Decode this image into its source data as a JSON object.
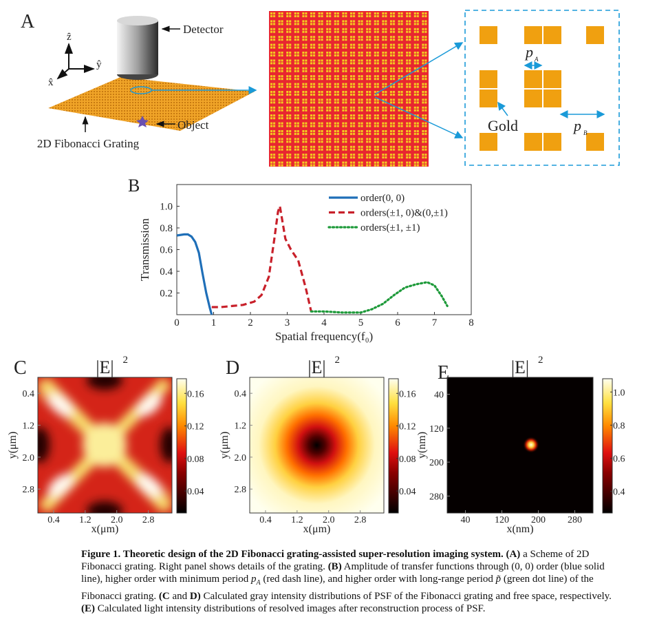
{
  "panel_a": {
    "label": "A",
    "detector": "Detector",
    "object": "Object",
    "grating": "2D Fibonacci Grating",
    "axis_z": "ẑ",
    "axis_y": "ŷ",
    "axis_x": "x̂",
    "gold": "Gold",
    "period_a": "p",
    "period_a_sub": "A",
    "period_b": "p",
    "period_b_sub": "B"
  },
  "chart_data": [
    {
      "type": "line",
      "label": "B",
      "xlabel": "Spatial frequency(f₀)",
      "ylabel": "Transmission",
      "xlim": [
        0,
        8
      ],
      "ylim": [
        0,
        1.2
      ],
      "xticks": [
        0,
        1,
        2,
        3,
        4,
        5,
        6,
        7,
        8
      ],
      "yticks": [
        0.2,
        0.4,
        0.6,
        0.8,
        {
          "value": 1,
          "label": "1.0"
        }
      ],
      "legend": "upper right",
      "series": [
        {
          "name": "order(0, 0)",
          "color": "#1f6fb8",
          "style": "solid",
          "x": [
            0,
            0.2,
            0.3,
            0.4,
            0.5,
            0.6,
            0.7,
            0.8,
            0.9,
            0.95
          ],
          "values": [
            0.73,
            0.74,
            0.74,
            0.72,
            0.67,
            0.57,
            0.38,
            0.2,
            0.06,
            0.0
          ]
        },
        {
          "name": "orders(±1, 0)&(0,±1)",
          "color": "#c8202a",
          "style": "dashed",
          "x": [
            0.95,
            1.2,
            1.5,
            1.8,
            2.1,
            2.3,
            2.5,
            2.65,
            2.75,
            2.8,
            2.85,
            2.95,
            3.1,
            3.3,
            3.5,
            3.65
          ],
          "values": [
            0.07,
            0.07,
            0.08,
            0.09,
            0.12,
            0.18,
            0.35,
            0.7,
            0.95,
            1.0,
            0.9,
            0.7,
            0.6,
            0.5,
            0.25,
            0.03
          ]
        },
        {
          "name": "orders(±1, ±1)",
          "color": "#1e9a3a",
          "style": "dotted",
          "x": [
            3.65,
            4.0,
            4.5,
            5.0,
            5.3,
            5.6,
            5.9,
            6.2,
            6.5,
            6.8,
            7.0,
            7.2,
            7.35
          ],
          "values": [
            0.03,
            0.03,
            0.02,
            0.02,
            0.05,
            0.1,
            0.18,
            0.25,
            0.28,
            0.3,
            0.27,
            0.17,
            0.08
          ]
        }
      ]
    },
    {
      "type": "heatmap",
      "label": "C",
      "title": "|E|",
      "title_sup": "2",
      "xlabel": "x(μm)",
      "ylabel": "y(μm)",
      "xlim": [
        0,
        3.4
      ],
      "ylim": [
        0,
        3.4
      ],
      "xticks": [
        0.4,
        1.2,
        {
          "value": 2,
          "label": "2.0"
        },
        2.8
      ],
      "yticks": [
        0.4,
        1.2,
        {
          "value": 2,
          "label": "2.0"
        },
        2.8
      ],
      "colorbar_lim": [
        0.013,
        0.178
      ],
      "colorbar_ticks": [
        0.04,
        0.08,
        0.12,
        0.16
      ]
    },
    {
      "type": "heatmap",
      "label": "D",
      "title": "|E|",
      "title_sup": "2",
      "xlabel": "x(μm)",
      "ylabel": "y(μm)",
      "xlim": [
        0,
        3.4
      ],
      "ylim": [
        0,
        3.4
      ],
      "xticks": [
        0.4,
        1.2,
        {
          "value": 2,
          "label": "2.0"
        },
        2.8
      ],
      "yticks": [
        0.4,
        1.2,
        {
          "value": 2,
          "label": "2.0"
        },
        2.8
      ],
      "colorbar_lim": [
        0.013,
        0.178
      ],
      "colorbar_ticks": [
        0.04,
        0.08,
        0.12,
        0.16
      ]
    },
    {
      "type": "heatmap",
      "label": "E",
      "title": "|E|",
      "title_sup": "2",
      "xlabel": "x(nm)",
      "ylabel": "y(nm)",
      "xlim": [
        0,
        320
      ],
      "ylim": [
        0,
        320
      ],
      "xticks": [
        40,
        120,
        200,
        280
      ],
      "yticks": [
        40,
        120,
        200,
        280
      ],
      "colorbar_lim": [
        0.27,
        1.08
      ],
      "colorbar_ticks": [
        0.4,
        0.6,
        0.8,
        {
          "value": 1,
          "label": "1.0"
        }
      ]
    }
  ],
  "caption": {
    "parts": [
      "Figure 1.  Theoretic design of the 2D Fibonacci grating-assisted super-resolution imaging system. (A)",
      " a Scheme of 2D Fibonacci grating. Right panel shows details of the grating. ",
      "(B)",
      " Amplitude of transfer functions through (0, 0) order (blue solid line), higher order with minimum period ",
      "p",
      "A",
      " (red dash line), and higher order with long-range period ",
      "p̃",
      " (green dot line) of the Fibonacci grating. ",
      "(C",
      " and ",
      "D)",
      " Calculated gray intensity distributions of PSF of the Fibonacci grating and free space, respectively. ",
      "(E)",
      " Calculated light intensity distributions of resolved images after reconstruction process of PSF."
    ]
  }
}
